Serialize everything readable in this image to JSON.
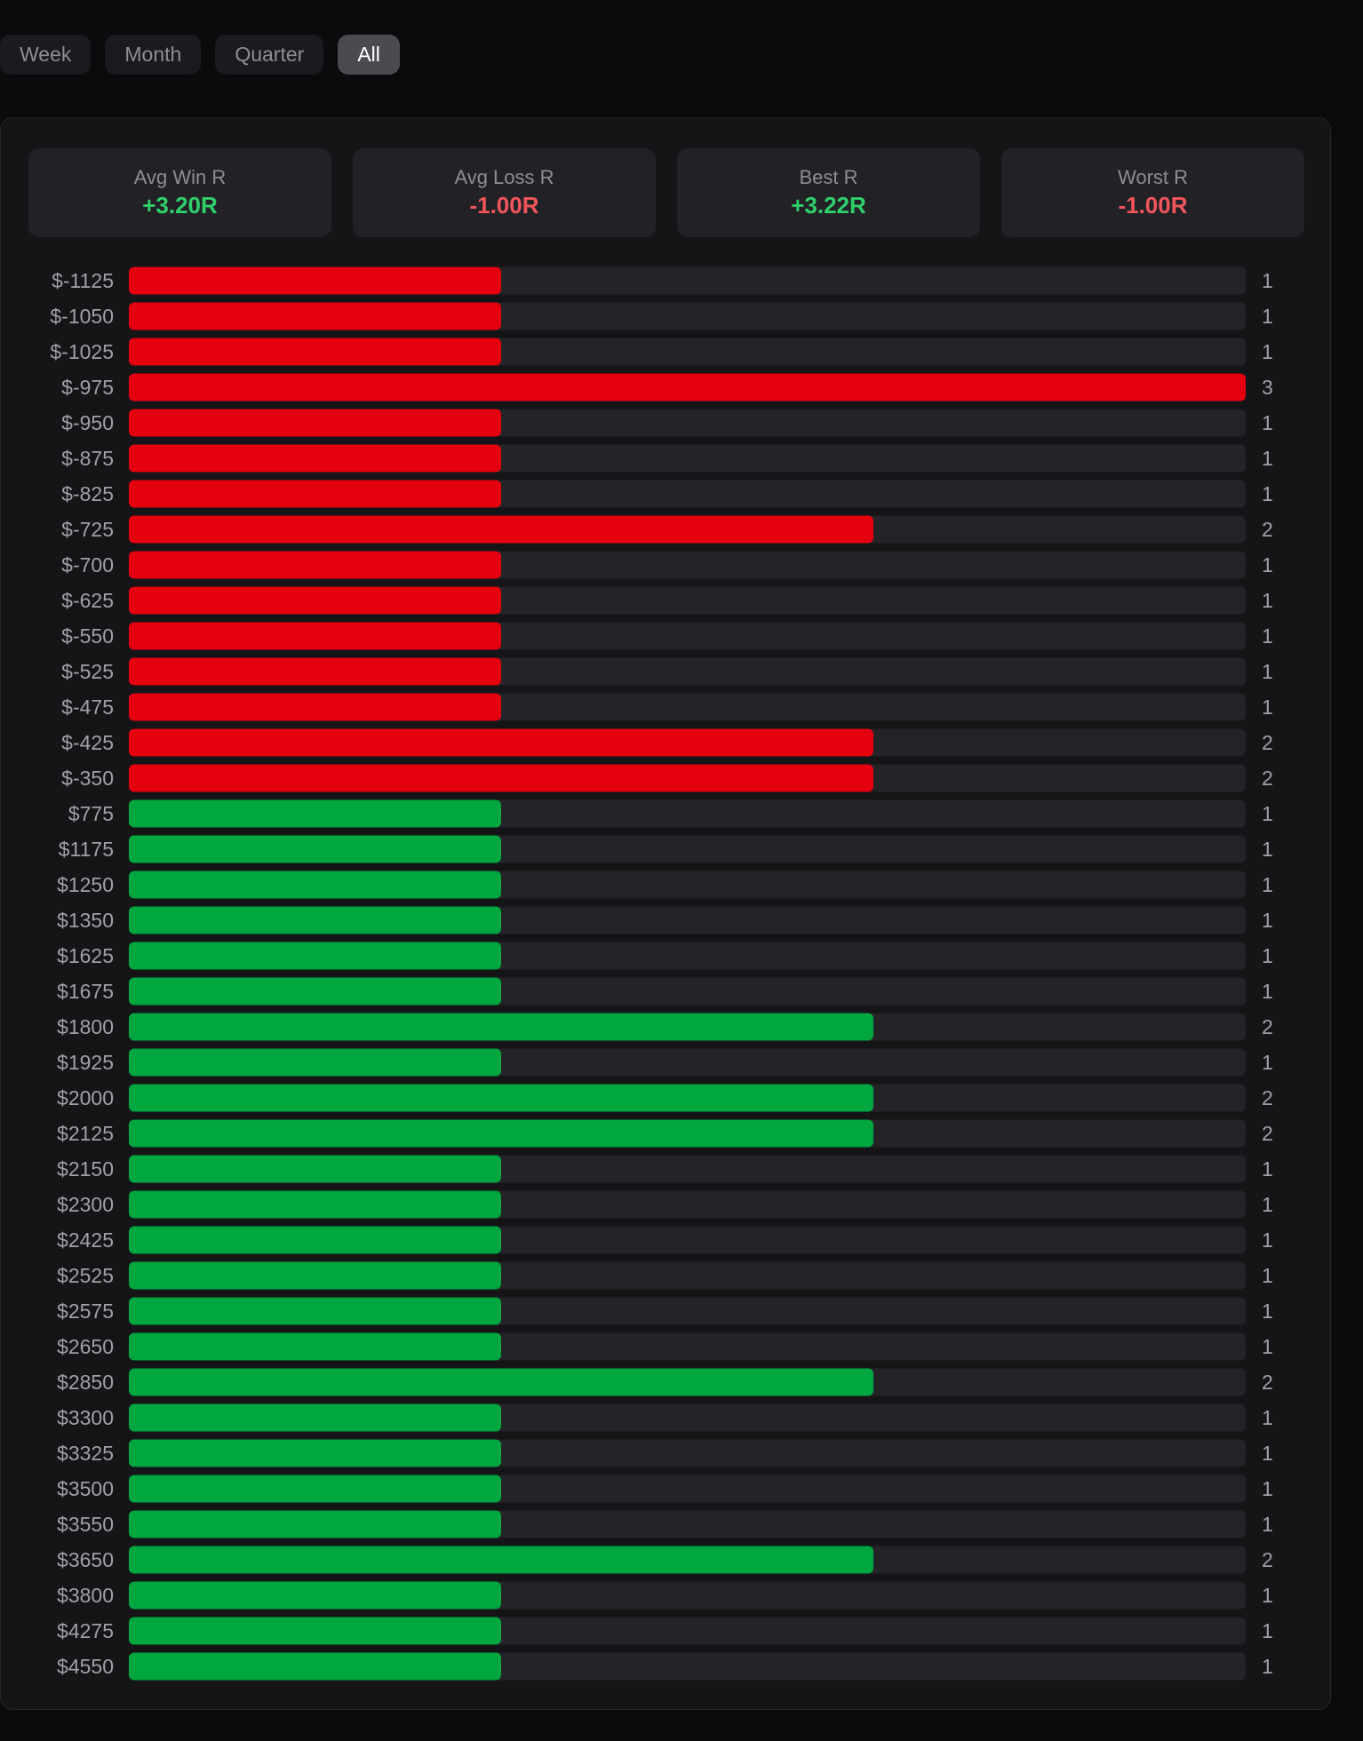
{
  "tabs": [
    "Week",
    "Month",
    "Quarter",
    "All"
  ],
  "active_tab": "All",
  "stats": [
    {
      "label": "Avg Win R",
      "value": "+3.20R",
      "tone": "pos"
    },
    {
      "label": "Avg Loss R",
      "value": "-1.00R",
      "tone": "neg"
    },
    {
      "label": "Best R",
      "value": "+3.22R",
      "tone": "pos"
    },
    {
      "label": "Worst R",
      "value": "-1.00R",
      "tone": "neg"
    }
  ],
  "colors": {
    "loss_bar": "#e5000f",
    "win_bar": "#00a63e",
    "track": "#242428",
    "label": "#a0a0a6"
  },
  "chart_data": {
    "type": "bar",
    "orientation": "horizontal",
    "categories": [
      "$-1125",
      "$-1050",
      "$-1025",
      "$-975",
      "$-950",
      "$-875",
      "$-825",
      "$-725",
      "$-700",
      "$-625",
      "$-550",
      "$-525",
      "$-475",
      "$-425",
      "$-350",
      "$775",
      "$1175",
      "$1250",
      "$1350",
      "$1625",
      "$1675",
      "$1800",
      "$1925",
      "$2000",
      "$2125",
      "$2150",
      "$2300",
      "$2425",
      "$2525",
      "$2575",
      "$2650",
      "$2850",
      "$3300",
      "$3325",
      "$3500",
      "$3550",
      "$3650",
      "$3800",
      "$4275",
      "$4550"
    ],
    "values": [
      1,
      1,
      1,
      3,
      1,
      1,
      1,
      2,
      1,
      1,
      1,
      1,
      1,
      2,
      2,
      1,
      1,
      1,
      1,
      1,
      1,
      2,
      1,
      2,
      2,
      1,
      1,
      1,
      1,
      1,
      1,
      2,
      1,
      1,
      1,
      1,
      2,
      1,
      1,
      1
    ],
    "xlim": [
      0,
      3
    ]
  }
}
